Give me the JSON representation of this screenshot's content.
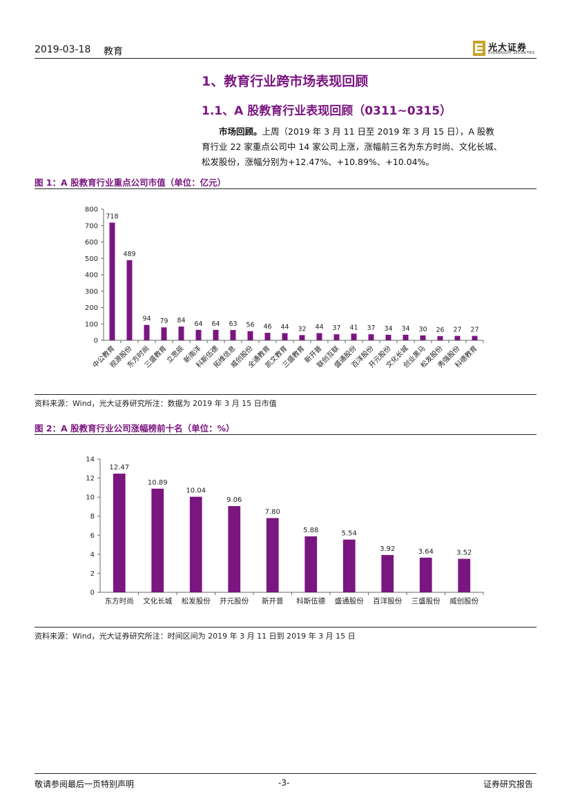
{
  "header": {
    "date": "2019-03-18",
    "sector": "教育",
    "logo_cn": "光大证券",
    "logo_en": "EVERBRIGHT SECURITIES"
  },
  "section": {
    "h1": "1、教育行业跨市场表现回顾",
    "h2": "1.1、A 股教育行业表现回顾（0311~0315）"
  },
  "paragraph": {
    "lead": "市场回顾。",
    "line1": "上周（2019 年 3 月 11 日至 2019 年 3 月 15 日），A 股教",
    "line2": "育行业 22 家重点公司中 14 家公司上涨，涨幅前三名为东方时尚、文化长城、",
    "line3": "松发股份，涨幅分别为+12.47%、+10.89%、+10.04%。"
  },
  "fig1": {
    "title": "图 1：A 股教育行业重点公司市值（单位：亿元）",
    "source": "资料来源：Wind，光大证券研究所注：数据为 2019 年 3 月 15 日市值"
  },
  "fig2": {
    "title": "图 2：A 股教育行业公司涨幅榜前十名（单位：%）",
    "source": "资料来源：Wind，光大证券研究所注：时间区间为 2019 年 3 月 11 日到 2019 年 3 月 15 日"
  },
  "footer": {
    "left": "敬请参阅最后一页特别声明",
    "center": "-3-",
    "right": "证券研究报告"
  },
  "chart_data": [
    {
      "type": "bar",
      "categories": [
        "中公教育",
        "视源股份",
        "东方时尚",
        "三盛教育",
        "立思辰",
        "新南洋",
        "科斯伍德",
        "拓维信息",
        "威创股份",
        "全通教育",
        "凯文教育",
        "三盛教育",
        "新开普",
        "联创互联",
        "盛通股份",
        "百洋股份",
        "开元股份",
        "文化长城",
        "创业黑马",
        "松发股份",
        "秀强股份",
        "科德教育"
      ],
      "values": [
        718,
        489,
        94,
        79,
        84,
        64,
        64,
        63,
        56,
        46,
        44,
        32,
        44,
        37,
        41,
        37,
        34,
        34,
        30,
        26,
        27,
        27
      ],
      "ylim": [
        0,
        800
      ],
      "yticks": [
        0,
        100,
        200,
        300,
        400,
        500,
        600,
        700,
        800
      ],
      "color": "#7a1680",
      "grid": false,
      "legend": "none"
    },
    {
      "type": "bar",
      "categories": [
        "东方时尚",
        "文化长城",
        "松发股份",
        "开元股份",
        "新开普",
        "科斯伍德",
        "盛通股份",
        "百洋股份",
        "三盛股份",
        "威创股份"
      ],
      "values": [
        12.47,
        10.89,
        10.04,
        9.06,
        7.8,
        5.88,
        5.54,
        3.92,
        3.64,
        3.52
      ],
      "labels": [
        "12.47",
        "10.89",
        "10.04",
        "9.06",
        "7.80",
        "5.88",
        "5.54",
        "3.92",
        "3.64",
        "3.52"
      ],
      "ylim": [
        0,
        14
      ],
      "yticks": [
        0,
        2,
        4,
        6,
        8,
        10,
        12,
        14
      ],
      "color": "#7a1680",
      "grid": false,
      "legend": "none"
    }
  ]
}
